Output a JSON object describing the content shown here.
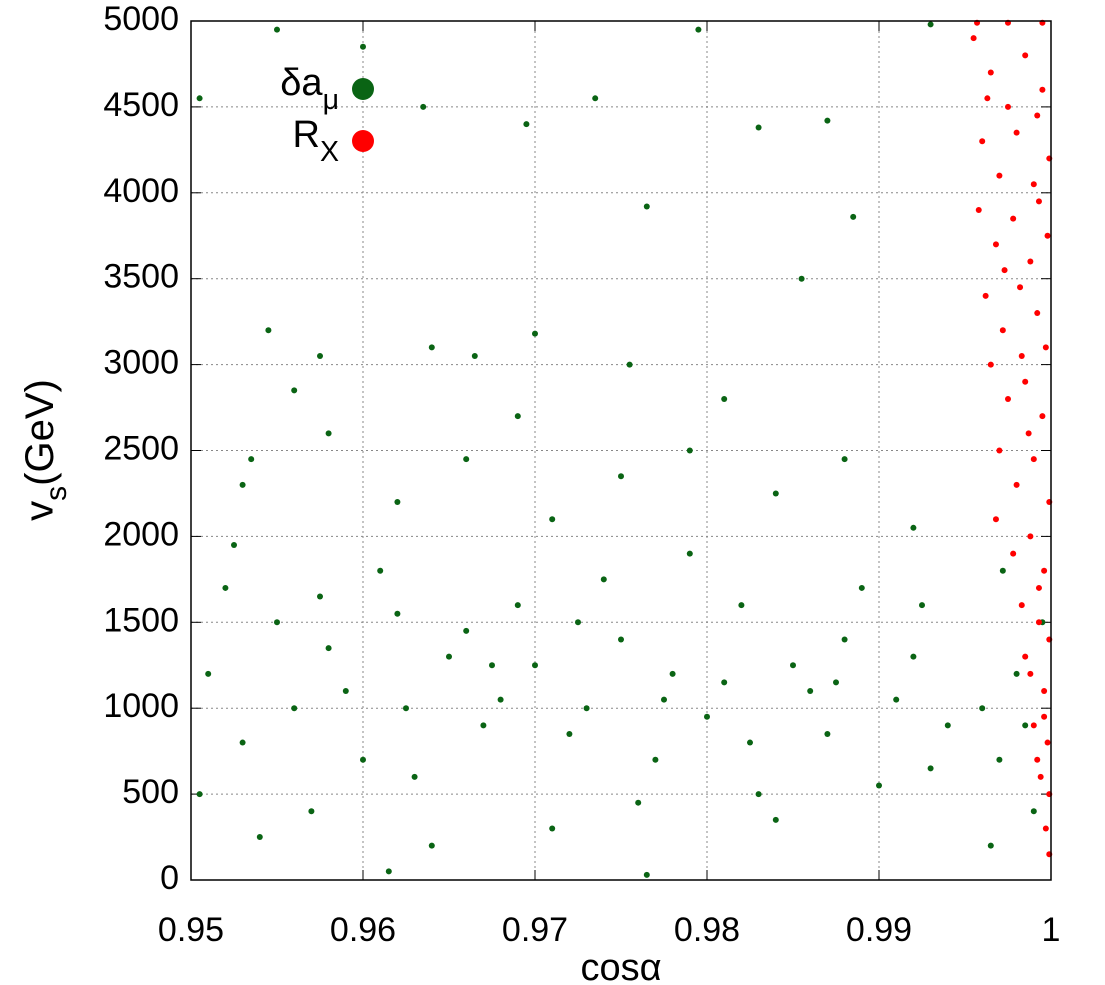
{
  "chart_data": {
    "type": "scatter",
    "x_label": "cosα",
    "y_label": "vs(GeV)",
    "xlim": [
      0.95,
      1
    ],
    "ylim": [
      0,
      5000
    ],
    "xticks": [
      0.95,
      0.96,
      0.97,
      0.98,
      0.99,
      1
    ],
    "yticks": [
      0,
      500,
      1000,
      1500,
      2000,
      2500,
      3000,
      3500,
      4000,
      4500,
      5000
    ],
    "grid": true,
    "legend_position": "top-left",
    "series": [
      {
        "name": "δaμ",
        "color": "#0a6414",
        "x": [
          0.951,
          0.953,
          0.955,
          0.957,
          0.959,
          0.961,
          0.963,
          0.965,
          0.967,
          0.969,
          0.971,
          0.973,
          0.975,
          0.977,
          0.979,
          0.981,
          0.983,
          0.985,
          0.987,
          0.989,
          0.991,
          0.993,
          0.952,
          0.954,
          0.956,
          0.958,
          0.96,
          0.962,
          0.964,
          0.966,
          0.968,
          0.97,
          0.972,
          0.974,
          0.976,
          0.978,
          0.98,
          0.982,
          0.984,
          0.986,
          0.988,
          0.99,
          0.992,
          0.994,
          0.9505,
          0.9525,
          0.9575,
          0.9625,
          0.9675,
          0.9725,
          0.9775,
          0.9825,
          0.9875,
          0.9925,
          0.9615,
          0.9765,
          0.953,
          0.958,
          0.962,
          0.966,
          0.971,
          0.975,
          0.979,
          0.984,
          0.988,
          0.992,
          0.956,
          0.969,
          0.981,
          0.9535,
          0.9545,
          0.9575,
          0.964,
          0.9635,
          0.9665,
          0.97,
          0.9755,
          0.9765,
          0.9855,
          0.9885,
          0.983,
          0.987,
          0.955,
          0.9695,
          0.9505,
          0.9795,
          0.993,
          0.9735,
          0.96,
          0.996,
          0.997,
          0.998,
          0.999,
          0.9995,
          0.9985,
          0.9972,
          0.9965
        ],
        "y": [
          1200,
          800,
          1500,
          400,
          1100,
          1800,
          600,
          1300,
          900,
          1600,
          300,
          1000,
          1400,
          700,
          1900,
          1150,
          500,
          1250,
          850,
          1700,
          1050,
          650,
          1700,
          250,
          1000,
          1350,
          700,
          1550,
          200,
          1450,
          1050,
          1250,
          850,
          1750,
          450,
          1200,
          950,
          1600,
          350,
          1100,
          1400,
          550,
          1300,
          900,
          500,
          1950,
          1650,
          1000,
          1250,
          1500,
          1050,
          800,
          1150,
          1600,
          50,
          30,
          2300,
          2600,
          2200,
          2450,
          2100,
          2350,
          2500,
          2250,
          2450,
          2050,
          2850,
          2700,
          2800,
          2450,
          3200,
          3050,
          3100,
          4500,
          3050,
          3180,
          3000,
          3920,
          3500,
          3860,
          4380,
          4420,
          4950,
          4400,
          4550,
          4950,
          4980,
          4550,
          4850,
          1000,
          700,
          1200,
          400,
          1500,
          900,
          1800,
          200
        ]
      },
      {
        "name": "RX",
        "color": "#ff0000",
        "x": [
          0.9955,
          0.9965,
          0.9975,
          0.9985,
          0.9995,
          0.996,
          0.997,
          0.998,
          0.999,
          0.9999,
          0.9958,
          0.9968,
          0.9978,
          0.9988,
          0.9998,
          0.9962,
          0.9972,
          0.9982,
          0.9992,
          0.9997,
          0.9965,
          0.9975,
          0.9985,
          0.9995,
          0.997,
          0.998,
          0.999,
          0.9999,
          0.9968,
          0.9978,
          0.9988,
          0.9996,
          0.9983,
          0.9993,
          0.9999,
          0.9988,
          0.9996,
          0.999,
          0.9998,
          0.9994,
          0.9999,
          0.9997,
          0.9999,
          0.9957,
          0.9975,
          0.9995,
          0.9963,
          0.9992,
          0.9973,
          0.9993,
          0.9983,
          0.9987,
          0.9993,
          0.9985,
          0.9996,
          0.9992
        ],
        "y": [
          4900,
          4700,
          4500,
          4800,
          4600,
          4300,
          4100,
          4350,
          4050,
          4200,
          3900,
          3700,
          3850,
          3600,
          3750,
          3400,
          3200,
          3450,
          3300,
          3100,
          3000,
          2800,
          2900,
          2700,
          2500,
          2300,
          2450,
          2200,
          2100,
          1900,
          2000,
          1800,
          1600,
          1500,
          1400,
          1200,
          1100,
          900,
          800,
          600,
          500,
          300,
          150,
          4990,
          4990,
          4990,
          4550,
          4450,
          3550,
          3950,
          3050,
          2600,
          1700,
          1300,
          950,
          700
        ]
      }
    ]
  }
}
